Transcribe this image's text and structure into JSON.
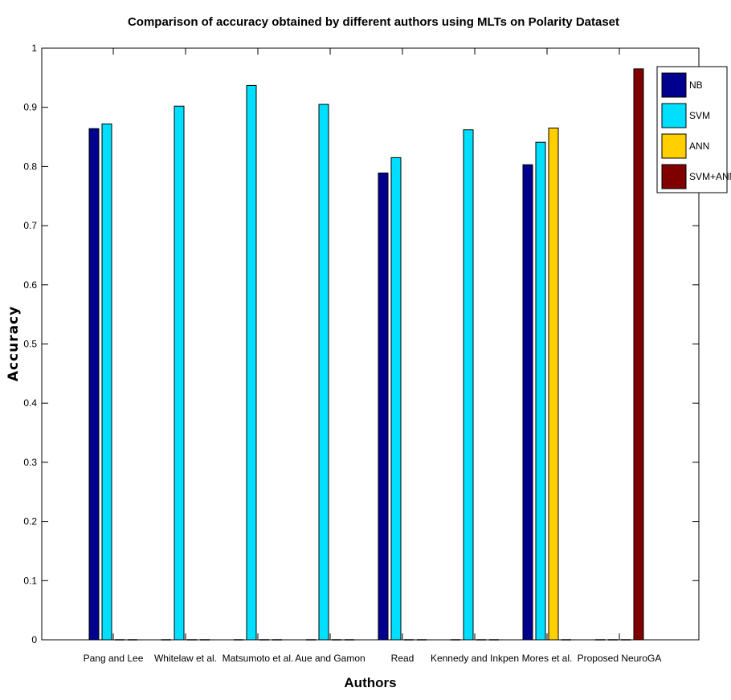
{
  "chart_data": {
    "type": "bar",
    "title": "Comparison of accuracy obtained by different authors using MLTs on Polarity Dataset",
    "xlabel": "Authors",
    "ylabel": "Accuracy",
    "ylim": [
      0,
      1
    ],
    "yticks": [
      "0",
      "0.1",
      "0.2",
      "0.3",
      "0.4",
      "0.5",
      "0.6",
      "0.7",
      "0.8",
      "0.9",
      "1"
    ],
    "grid": false,
    "legend_position": "top-right",
    "categories": [
      "Pang and Lee",
      "Whitelaw et al.",
      "Matsumoto et al.",
      "Aue and Gamon",
      "Read",
      "Kennedy and Inkpen",
      "Mores et al.",
      "Proposed NeuroGA"
    ],
    "series": [
      {
        "name": "NB",
        "color": "#00008f",
        "values": [
          0.864,
          null,
          null,
          null,
          0.789,
          null,
          0.803,
          null
        ]
      },
      {
        "name": "SVM",
        "color": "#00dfff",
        "values": [
          0.872,
          0.902,
          0.937,
          0.905,
          0.815,
          0.862,
          0.841,
          null
        ]
      },
      {
        "name": "ANN",
        "color": "#ffcf00",
        "values": [
          null,
          null,
          null,
          null,
          null,
          null,
          0.865,
          null
        ]
      },
      {
        "name": "SVM+ANN",
        "color": "#800000",
        "values": [
          null,
          null,
          null,
          null,
          null,
          null,
          null,
          0.965
        ]
      }
    ]
  }
}
